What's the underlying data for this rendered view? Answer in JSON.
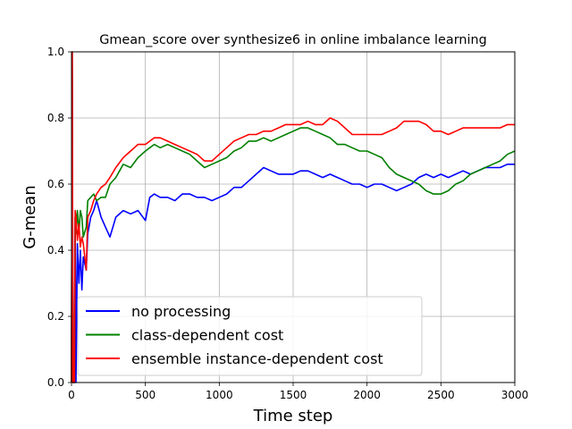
{
  "chart_data": {
    "type": "line",
    "title": "Gmean_score over synthesize6 in online imbalance learning",
    "xlabel": "Time step",
    "ylabel": "G-mean",
    "xlim": [
      0,
      3000
    ],
    "ylim": [
      0.0,
      1.0
    ],
    "xticks": [
      0,
      500,
      1000,
      1500,
      2000,
      2500,
      3000
    ],
    "yticks": [
      0.0,
      0.2,
      0.4,
      0.6,
      0.8,
      1.0
    ],
    "xtick_labels": [
      "0",
      "500",
      "1000",
      "1500",
      "2000",
      "2500",
      "3000"
    ],
    "ytick_labels": [
      "0.0",
      "0.2",
      "0.4",
      "0.6",
      "0.8",
      "1.0"
    ],
    "grid": true,
    "legend_position": "lower-left",
    "series": [
      {
        "name": "no processing",
        "color": "#0000ff",
        "points": [
          [
            0,
            0.0
          ],
          [
            5,
            1.0
          ],
          [
            10,
            0.0
          ],
          [
            20,
            0.0
          ],
          [
            25,
            0.5
          ],
          [
            30,
            0.0
          ],
          [
            40,
            0.42
          ],
          [
            50,
            0.3
          ],
          [
            60,
            0.4
          ],
          [
            70,
            0.28
          ],
          [
            80,
            0.38
          ],
          [
            100,
            0.34
          ],
          [
            110,
            0.45
          ],
          [
            130,
            0.5
          ],
          [
            150,
            0.52
          ],
          [
            170,
            0.55
          ],
          [
            200,
            0.5
          ],
          [
            230,
            0.47
          ],
          [
            260,
            0.44
          ],
          [
            300,
            0.5
          ],
          [
            350,
            0.52
          ],
          [
            400,
            0.51
          ],
          [
            450,
            0.52
          ],
          [
            500,
            0.49
          ],
          [
            530,
            0.56
          ],
          [
            560,
            0.57
          ],
          [
            600,
            0.56
          ],
          [
            650,
            0.56
          ],
          [
            700,
            0.55
          ],
          [
            750,
            0.57
          ],
          [
            800,
            0.57
          ],
          [
            850,
            0.56
          ],
          [
            900,
            0.56
          ],
          [
            950,
            0.55
          ],
          [
            1000,
            0.56
          ],
          [
            1050,
            0.57
          ],
          [
            1100,
            0.59
          ],
          [
            1150,
            0.59
          ],
          [
            1200,
            0.61
          ],
          [
            1250,
            0.63
          ],
          [
            1300,
            0.65
          ],
          [
            1350,
            0.64
          ],
          [
            1400,
            0.63
          ],
          [
            1450,
            0.63
          ],
          [
            1500,
            0.63
          ],
          [
            1550,
            0.64
          ],
          [
            1600,
            0.64
          ],
          [
            1650,
            0.63
          ],
          [
            1700,
            0.62
          ],
          [
            1750,
            0.63
          ],
          [
            1800,
            0.62
          ],
          [
            1850,
            0.61
          ],
          [
            1900,
            0.6
          ],
          [
            1950,
            0.6
          ],
          [
            2000,
            0.59
          ],
          [
            2050,
            0.6
          ],
          [
            2100,
            0.6
          ],
          [
            2150,
            0.59
          ],
          [
            2200,
            0.58
          ],
          [
            2250,
            0.59
          ],
          [
            2300,
            0.6
          ],
          [
            2350,
            0.62
          ],
          [
            2400,
            0.63
          ],
          [
            2450,
            0.62
          ],
          [
            2500,
            0.63
          ],
          [
            2550,
            0.62
          ],
          [
            2600,
            0.63
          ],
          [
            2650,
            0.64
          ],
          [
            2700,
            0.63
          ],
          [
            2750,
            0.64
          ],
          [
            2800,
            0.65
          ],
          [
            2850,
            0.65
          ],
          [
            2900,
            0.65
          ],
          [
            2950,
            0.66
          ],
          [
            3000,
            0.66
          ]
        ]
      },
      {
        "name": "class-dependent cost",
        "color": "#008000",
        "points": [
          [
            0,
            0.0
          ],
          [
            5,
            1.0
          ],
          [
            10,
            0.0
          ],
          [
            20,
            0.0
          ],
          [
            25,
            0.5
          ],
          [
            30,
            0.45
          ],
          [
            40,
            0.52
          ],
          [
            50,
            0.45
          ],
          [
            60,
            0.52
          ],
          [
            70,
            0.5
          ],
          [
            80,
            0.44
          ],
          [
            100,
            0.47
          ],
          [
            110,
            0.55
          ],
          [
            130,
            0.56
          ],
          [
            150,
            0.57
          ],
          [
            170,
            0.55
          ],
          [
            200,
            0.56
          ],
          [
            230,
            0.56
          ],
          [
            260,
            0.6
          ],
          [
            300,
            0.62
          ],
          [
            350,
            0.66
          ],
          [
            400,
            0.65
          ],
          [
            450,
            0.68
          ],
          [
            500,
            0.7
          ],
          [
            530,
            0.71
          ],
          [
            560,
            0.72
          ],
          [
            600,
            0.71
          ],
          [
            650,
            0.72
          ],
          [
            700,
            0.71
          ],
          [
            750,
            0.7
          ],
          [
            800,
            0.69
          ],
          [
            850,
            0.67
          ],
          [
            900,
            0.65
          ],
          [
            950,
            0.66
          ],
          [
            1000,
            0.67
          ],
          [
            1050,
            0.68
          ],
          [
            1100,
            0.7
          ],
          [
            1150,
            0.71
          ],
          [
            1200,
            0.73
          ],
          [
            1250,
            0.73
          ],
          [
            1300,
            0.74
          ],
          [
            1350,
            0.73
          ],
          [
            1400,
            0.74
          ],
          [
            1450,
            0.75
          ],
          [
            1500,
            0.76
          ],
          [
            1550,
            0.77
          ],
          [
            1600,
            0.77
          ],
          [
            1650,
            0.76
          ],
          [
            1700,
            0.75
          ],
          [
            1750,
            0.74
          ],
          [
            1800,
            0.72
          ],
          [
            1850,
            0.72
          ],
          [
            1900,
            0.71
          ],
          [
            1950,
            0.7
          ],
          [
            2000,
            0.7
          ],
          [
            2050,
            0.69
          ],
          [
            2100,
            0.68
          ],
          [
            2150,
            0.65
          ],
          [
            2200,
            0.63
          ],
          [
            2250,
            0.62
          ],
          [
            2300,
            0.61
          ],
          [
            2350,
            0.6
          ],
          [
            2400,
            0.58
          ],
          [
            2450,
            0.57
          ],
          [
            2500,
            0.57
          ],
          [
            2550,
            0.58
          ],
          [
            2600,
            0.6
          ],
          [
            2650,
            0.61
          ],
          [
            2700,
            0.63
          ],
          [
            2750,
            0.64
          ],
          [
            2800,
            0.65
          ],
          [
            2850,
            0.66
          ],
          [
            2900,
            0.67
          ],
          [
            2950,
            0.69
          ],
          [
            3000,
            0.7
          ]
        ]
      },
      {
        "name": "ensemble instance-dependent cost",
        "color": "#ff0000",
        "points": [
          [
            0,
            0.0
          ],
          [
            5,
            1.0
          ],
          [
            10,
            0.0
          ],
          [
            20,
            0.0
          ],
          [
            25,
            0.52
          ],
          [
            30,
            0.5
          ],
          [
            40,
            0.43
          ],
          [
            50,
            0.48
          ],
          [
            60,
            0.41
          ],
          [
            70,
            0.44
          ],
          [
            80,
            0.42
          ],
          [
            100,
            0.34
          ],
          [
            110,
            0.5
          ],
          [
            130,
            0.52
          ],
          [
            150,
            0.55
          ],
          [
            170,
            0.57
          ],
          [
            200,
            0.59
          ],
          [
            230,
            0.6
          ],
          [
            260,
            0.62
          ],
          [
            300,
            0.65
          ],
          [
            350,
            0.68
          ],
          [
            400,
            0.7
          ],
          [
            450,
            0.72
          ],
          [
            500,
            0.72
          ],
          [
            530,
            0.73
          ],
          [
            560,
            0.74
          ],
          [
            600,
            0.74
          ],
          [
            650,
            0.73
          ],
          [
            700,
            0.72
          ],
          [
            750,
            0.71
          ],
          [
            800,
            0.7
          ],
          [
            850,
            0.69
          ],
          [
            900,
            0.67
          ],
          [
            950,
            0.67
          ],
          [
            1000,
            0.69
          ],
          [
            1050,
            0.71
          ],
          [
            1100,
            0.73
          ],
          [
            1150,
            0.74
          ],
          [
            1200,
            0.75
          ],
          [
            1250,
            0.75
          ],
          [
            1300,
            0.76
          ],
          [
            1350,
            0.76
          ],
          [
            1400,
            0.77
          ],
          [
            1450,
            0.78
          ],
          [
            1500,
            0.78
          ],
          [
            1550,
            0.78
          ],
          [
            1600,
            0.79
          ],
          [
            1650,
            0.78
          ],
          [
            1700,
            0.78
          ],
          [
            1750,
            0.8
          ],
          [
            1800,
            0.79
          ],
          [
            1850,
            0.77
          ],
          [
            1900,
            0.75
          ],
          [
            1950,
            0.75
          ],
          [
            2000,
            0.75
          ],
          [
            2050,
            0.75
          ],
          [
            2100,
            0.75
          ],
          [
            2150,
            0.76
          ],
          [
            2200,
            0.77
          ],
          [
            2250,
            0.79
          ],
          [
            2300,
            0.79
          ],
          [
            2350,
            0.79
          ],
          [
            2400,
            0.78
          ],
          [
            2450,
            0.76
          ],
          [
            2500,
            0.76
          ],
          [
            2550,
            0.75
          ],
          [
            2600,
            0.76
          ],
          [
            2650,
            0.77
          ],
          [
            2700,
            0.77
          ],
          [
            2750,
            0.77
          ],
          [
            2800,
            0.77
          ],
          [
            2850,
            0.77
          ],
          [
            2900,
            0.77
          ],
          [
            2950,
            0.78
          ],
          [
            3000,
            0.78
          ]
        ]
      }
    ]
  }
}
